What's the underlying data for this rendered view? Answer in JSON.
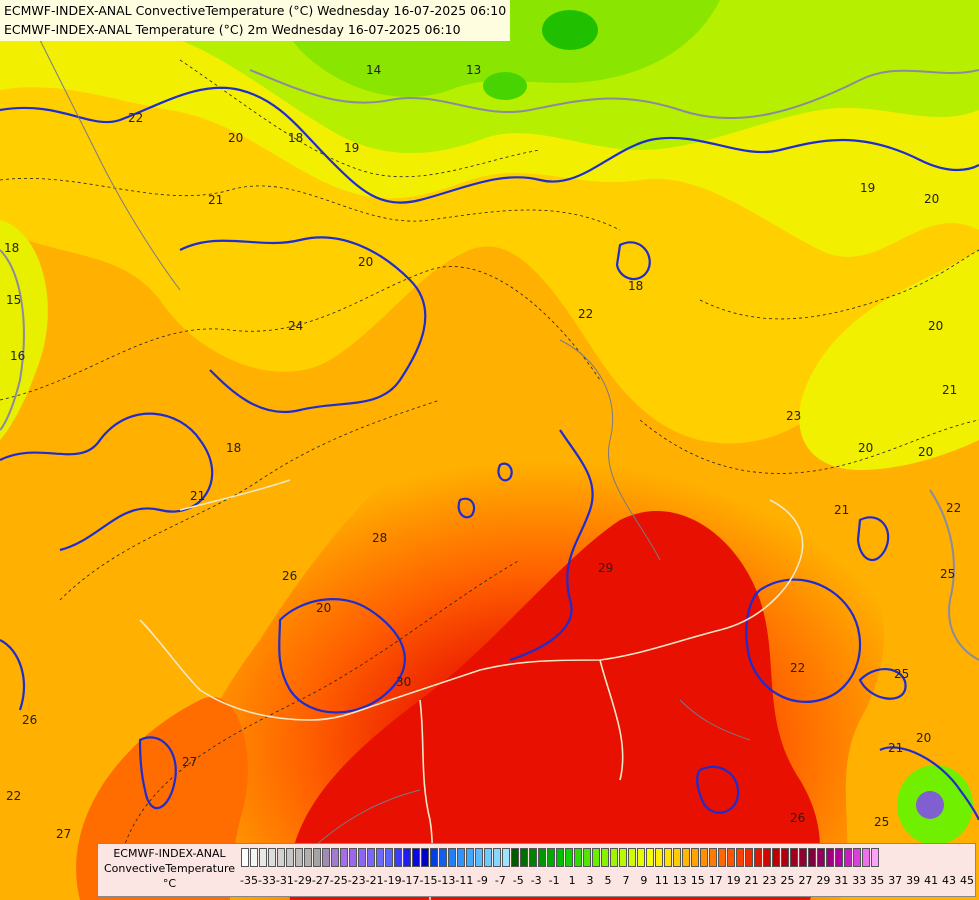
{
  "header": {
    "line1": "ECMWF-INDEX-ANAL ConvectiveTemperature (°C) Wednesday 16-07-2025 06:10",
    "line2": "ECMWF-INDEX-ANAL Temperature (°C) 2m Wednesday 16-07-2025 06:10"
  },
  "map_labels": [
    "22",
    "20",
    "18",
    "19",
    "14",
    "13",
    "20",
    "21",
    "18",
    "15",
    "16",
    "24",
    "20",
    "18",
    "19",
    "22",
    "20",
    "21",
    "20",
    "23",
    "20",
    "21",
    "22",
    "25",
    "18",
    "21",
    "28",
    "26",
    "20",
    "29",
    "30",
    "26",
    "27",
    "22",
    "27",
    "26",
    "25",
    "21",
    "20",
    "25",
    "22"
  ],
  "legend": {
    "title_1": "ECMWF-INDEX-ANAL",
    "title_2": "ConvectiveTemperature",
    "unit": "°C",
    "tick_labels": [
      "-35",
      "-33",
      "-31",
      "-29",
      "-27",
      "-25",
      "-23",
      "-21",
      "-19",
      "-17",
      "-15",
      "-13",
      "-11",
      "-9",
      "-7",
      "-5",
      "-3",
      "-1",
      "1",
      "3",
      "5",
      "7",
      "9",
      "11",
      "13",
      "15",
      "17",
      "19",
      "21",
      "23",
      "25",
      "27",
      "29",
      "31",
      "33",
      "35",
      "37",
      "39",
      "41",
      "43",
      "45"
    ],
    "colors": [
      "#ffffff",
      "#f4f4f4",
      "#e8e8e8",
      "#dddddd",
      "#d2d2d2",
      "#c6c6c6",
      "#bbbbbb",
      "#afafaf",
      "#a4a4a4",
      "#9e8cb6",
      "#a07cd0",
      "#a46ee6",
      "#9a66f0",
      "#8a66f6",
      "#7a66fa",
      "#6a6afc",
      "#5a66fe",
      "#3c3cff",
      "#1e1ef0",
      "#0a0ae0",
      "#0000c8",
      "#0040e0",
      "#1060f0",
      "#2080f8",
      "#3094fc",
      "#40a8ff",
      "#56bcff",
      "#6ccaff",
      "#84d8ff",
      "#9ce4ff",
      "#005a00",
      "#006e00",
      "#008200",
      "#009600",
      "#00aa00",
      "#00be00",
      "#14d200",
      "#30dc00",
      "#50e600",
      "#6cee00",
      "#88f200",
      "#a0f600",
      "#b8fa00",
      "#d0fc00",
      "#e6fe00",
      "#f8ff00",
      "#fff000",
      "#ffe000",
      "#ffcc00",
      "#ffb800",
      "#ffa400",
      "#ff9000",
      "#ff7c00",
      "#ff6800",
      "#ff5400",
      "#ff4000",
      "#f02c00",
      "#e01800",
      "#d00800",
      "#c00000",
      "#b00010",
      "#a00020",
      "#900030",
      "#800040",
      "#900060",
      "#a00080",
      "#b400a0",
      "#c820c0",
      "#dc40dc",
      "#ee70ee",
      "#ffa0ff"
    ]
  }
}
